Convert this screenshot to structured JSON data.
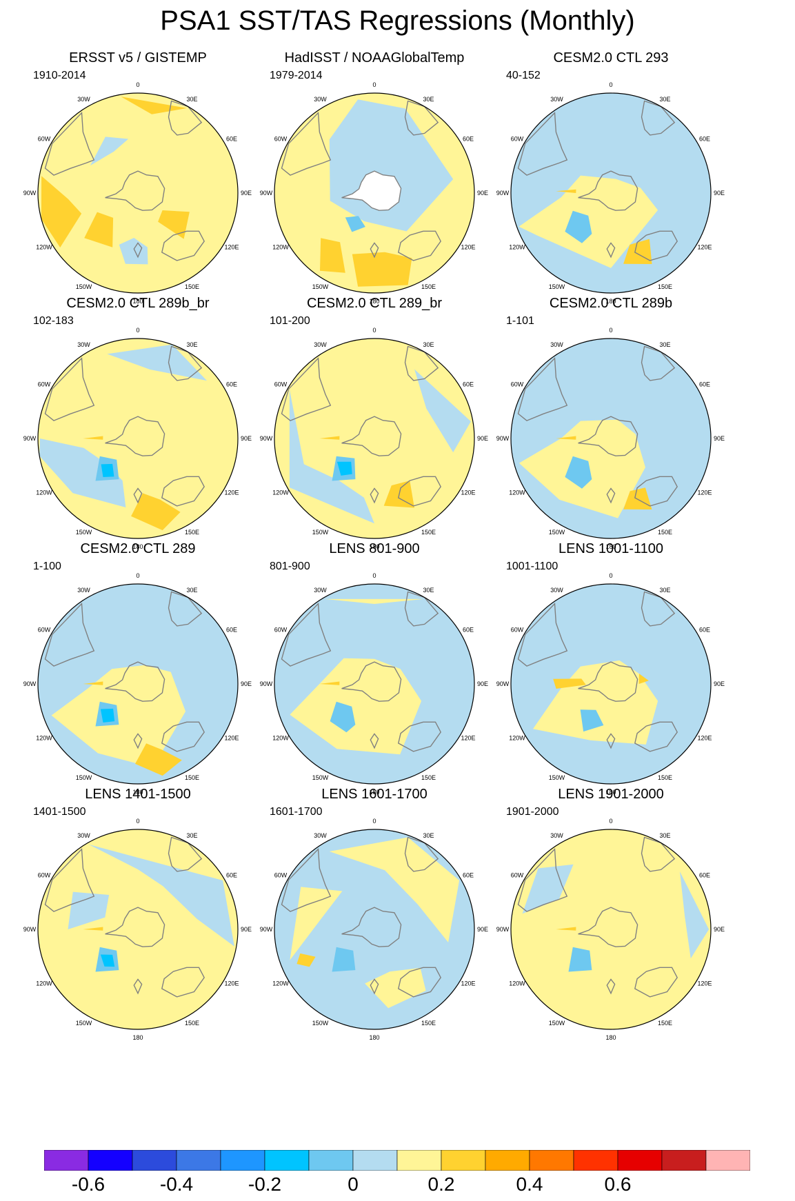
{
  "title": "PSA1 SST/TAS Regressions (Monthly)",
  "longitude_labels": [
    "0",
    "30E",
    "60E",
    "90E",
    "120E",
    "150E",
    "180",
    "150W",
    "120W",
    "90W",
    "60W",
    "30W"
  ],
  "panels": [
    {
      "title": "ERSST v5 / GISTEMP",
      "period": "1910-2014"
    },
    {
      "title": "HadISST / NOAAGlobalTemp",
      "period": "1979-2014"
    },
    {
      "title": "CESM2.0 CTL 293",
      "period": "40-152"
    },
    {
      "title": "CESM2.0 CTL 289b_br",
      "period": "102-183"
    },
    {
      "title": "CESM2.0 CTL 289_br",
      "period": "101-200"
    },
    {
      "title": "CESM2.0 CTL 289b",
      "period": "1-101"
    },
    {
      "title": "CESM2.0 CTL 289",
      "period": "1-100"
    },
    {
      "title": "LENS 801-900",
      "period": "801-900"
    },
    {
      "title": "LENS 1001-1100",
      "period": "1001-1100"
    },
    {
      "title": "LENS 1401-1500",
      "period": "1401-1500"
    },
    {
      "title": "LENS 1601-1700",
      "period": "1601-1700"
    },
    {
      "title": "LENS 1901-2000",
      "period": "1901-2000"
    }
  ],
  "colorbar": {
    "colors": [
      "#8a2be2",
      "#1400ff",
      "#2c4bdc",
      "#3c78e6",
      "#1e96ff",
      "#00c4ff",
      "#6ec8f0",
      "#b4dcf0",
      "#fff597",
      "#ffd230",
      "#ffaa00",
      "#ff7800",
      "#ff3200",
      "#e60000",
      "#c81e1e",
      "#ffb4b4"
    ],
    "labels": [
      "-0.6",
      "-0.4",
      "-0.2",
      "0",
      "0.2",
      "0.4",
      "0.6"
    ]
  },
  "palette": {
    "ocean_light_blue": "#b4dcf0",
    "ocean_mid_blue": "#6ec8f0",
    "ocean_cyan": "#00c4ff",
    "light_yellow": "#fff597",
    "gold": "#ffd230",
    "orange": "#ffaa00",
    "land_outline": "#808080"
  }
}
